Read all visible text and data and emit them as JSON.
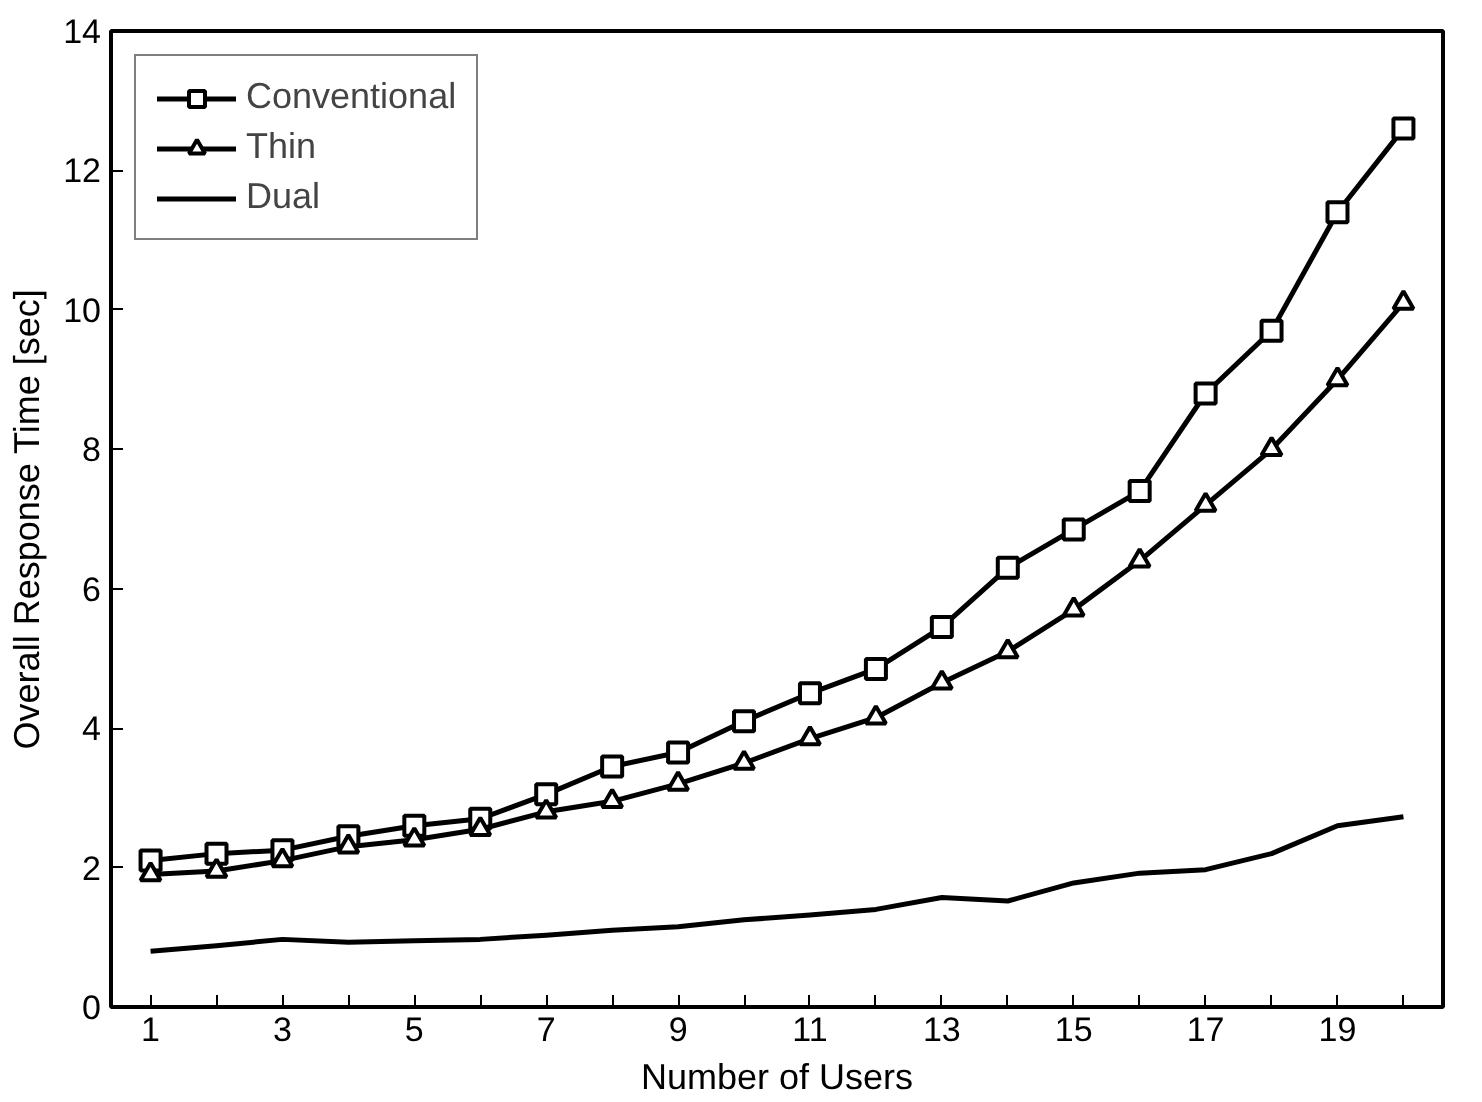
{
  "chart_data": {
    "type": "line",
    "xlabel": "Number of Users",
    "ylabel": "Overall Response Time [sec]",
    "x": [
      1,
      2,
      3,
      4,
      5,
      6,
      7,
      8,
      9,
      10,
      11,
      12,
      13,
      14,
      15,
      16,
      17,
      18,
      19,
      20
    ],
    "series": [
      {
        "name": "Conventional",
        "color": "#000000",
        "marker": "square",
        "values": [
          2.1,
          2.2,
          2.25,
          2.45,
          2.6,
          2.7,
          3.05,
          3.45,
          3.65,
          4.1,
          4.5,
          4.85,
          5.45,
          6.3,
          6.85,
          7.4,
          8.8,
          9.7,
          11.4,
          12.6
        ]
      },
      {
        "name": "Thin",
        "color": "#000000",
        "marker": "triangle",
        "values": [
          1.9,
          1.95,
          2.1,
          2.3,
          2.4,
          2.55,
          2.8,
          2.95,
          3.2,
          3.5,
          3.85,
          4.15,
          4.65,
          5.1,
          5.7,
          6.4,
          7.2,
          8.0,
          9.0,
          10.1
        ]
      },
      {
        "name": "Dual",
        "color": "#000000",
        "marker": "none",
        "values": [
          0.8,
          0.88,
          0.97,
          0.93,
          0.95,
          0.97,
          1.03,
          1.1,
          1.15,
          1.25,
          1.32,
          1.4,
          1.57,
          1.52,
          1.78,
          1.92,
          1.97,
          2.2,
          2.6,
          2.73
        ]
      }
    ],
    "xlim": [
      0.4,
      20.6
    ],
    "ylim": [
      0,
      14
    ],
    "xticks": [
      1,
      {
        "value": 2,
        "label": null
      },
      3,
      {
        "value": 4,
        "label": null
      },
      5,
      {
        "value": 6,
        "label": null
      },
      7,
      {
        "value": 8,
        "label": null
      },
      9,
      {
        "value": 10,
        "label": null
      },
      11,
      {
        "value": 12,
        "label": null
      },
      13,
      {
        "value": 14,
        "label": null
      },
      15,
      {
        "value": 16,
        "label": null
      },
      17,
      {
        "value": 18,
        "label": null
      },
      19,
      {
        "value": 20,
        "label": null
      }
    ],
    "yticks": [
      0,
      2,
      4,
      6,
      8,
      10,
      12,
      14
    ],
    "grid": false,
    "legend": "top left",
    "line_style": "solid"
  }
}
